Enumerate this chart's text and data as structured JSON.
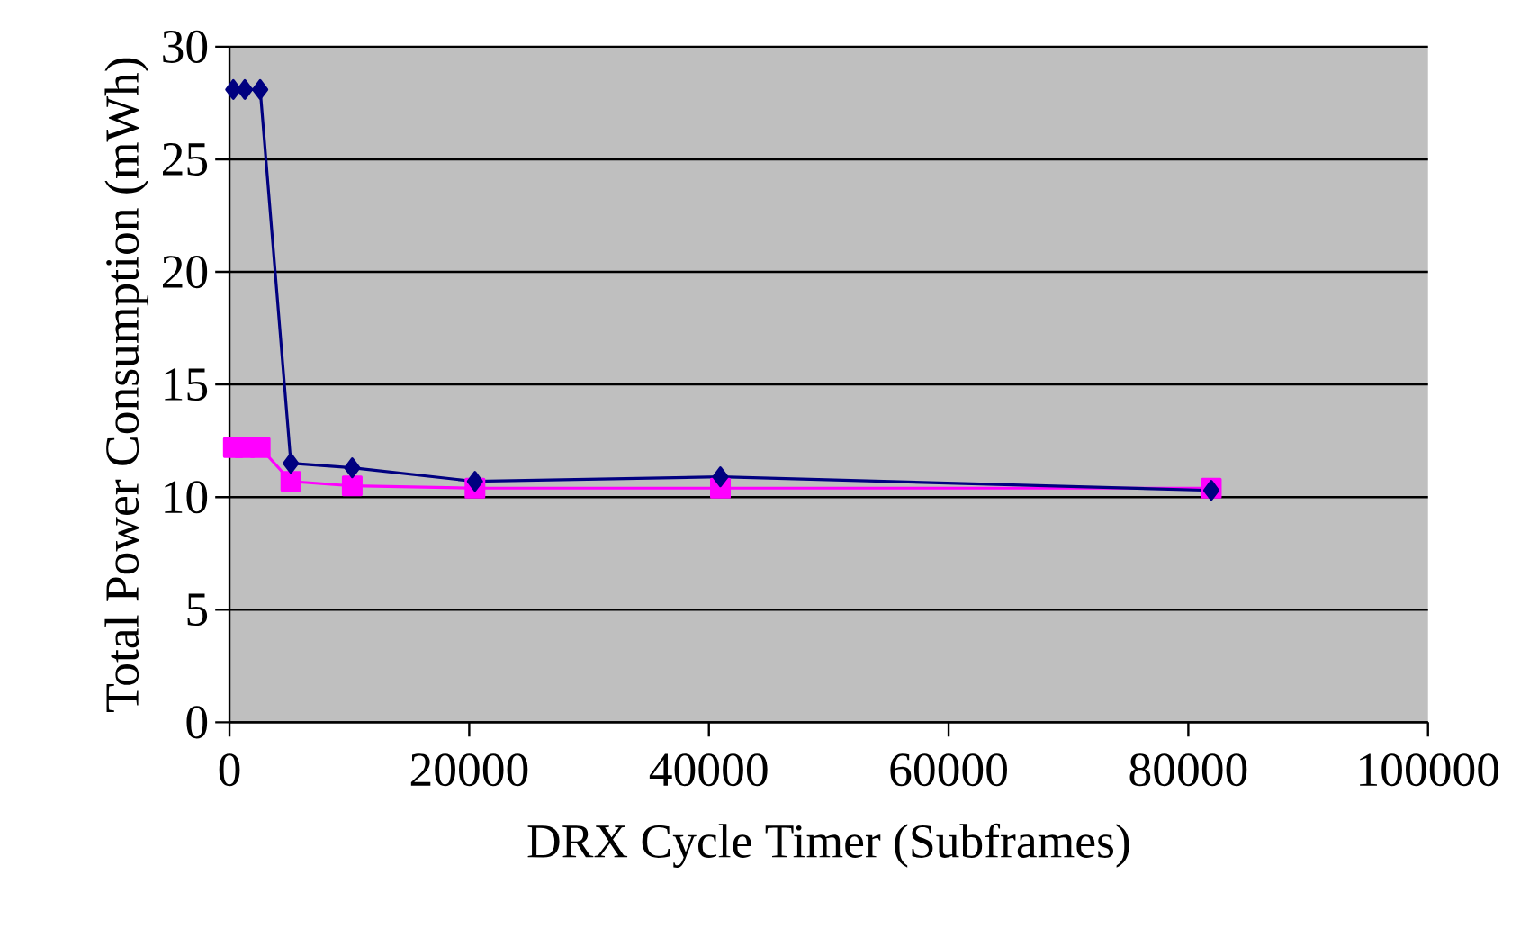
{
  "chart_data": {
    "type": "line",
    "xlabel": "DRX Cycle Timer (Subframes)",
    "ylabel": "Total Power Consumption (mWh)",
    "x": [
      320,
      1280,
      2560,
      5120,
      10240,
      20480,
      40960,
      81920
    ],
    "series": [
      {
        "color": "#000080",
        "marker": "diamond",
        "values": [
          28.1,
          28.1,
          28.1,
          11.5,
          11.3,
          10.7,
          10.9,
          10.3
        ]
      },
      {
        "color": "#ff00ff",
        "marker": "square",
        "values": [
          12.2,
          12.2,
          12.2,
          10.7,
          10.5,
          10.4,
          10.4,
          10.4
        ]
      }
    ],
    "xlim": [
      0,
      100000
    ],
    "xticks": [
      0,
      20000,
      40000,
      60000,
      80000,
      100000
    ],
    "ylim": [
      0,
      30
    ],
    "yticks": [
      0,
      5,
      10,
      15,
      20,
      25,
      30
    ],
    "grid": "y",
    "line_style": "solid"
  }
}
